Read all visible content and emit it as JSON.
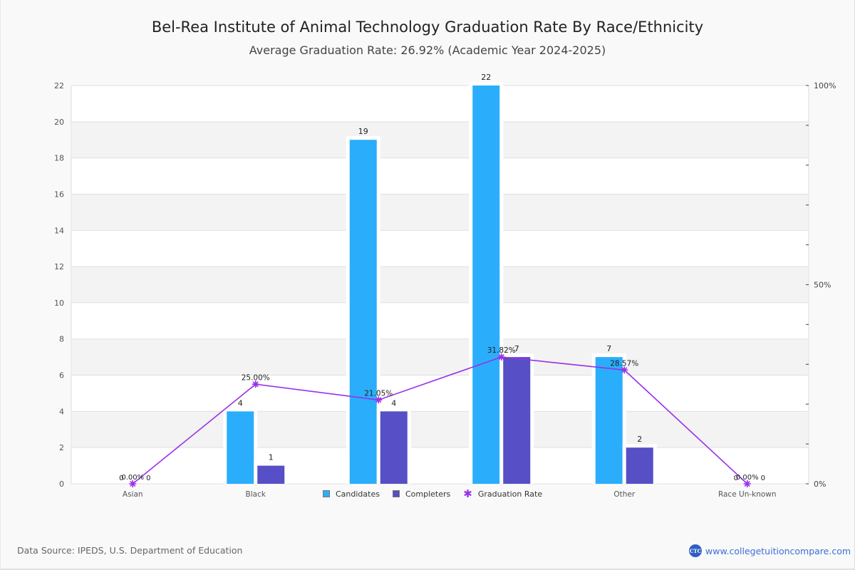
{
  "header": {
    "title": "Bel-Rea Institute of Animal Technology Graduation Rate By Race/Ethnicity",
    "subtitle": "Average Graduation Rate: 26.92% (Academic Year 2024-2025)"
  },
  "footer": {
    "source": "Data Source: IPEDS, U.S. Department of Education",
    "brand_logo_text": "CTC",
    "brand_url": "www.collegetuitioncompare.com"
  },
  "colors": {
    "candidates": "#2aaefc",
    "completers": "#564fc5",
    "graduation_rate": "#9b30e8"
  },
  "legend": {
    "items": [
      {
        "label": "Candidates",
        "icon": "square-swatch"
      },
      {
        "label": "Completers",
        "icon": "square-swatch"
      },
      {
        "label": "Graduation Rate",
        "icon": "star-marker-icon"
      }
    ]
  },
  "chart_data": {
    "type": "bar",
    "title": "Bel-Rea Institute of Animal Technology Graduation Rate By Race/Ethnicity",
    "subtitle": "Average Graduation Rate: 26.92% (Academic Year 2024-2025)",
    "categories": [
      "Asian",
      "Black",
      "",
      "",
      "Other",
      "Race Un-known"
    ],
    "series": [
      {
        "name": "Candidates",
        "type": "bar",
        "axis": "left",
        "values": [
          0,
          4,
          19,
          22,
          7,
          0
        ],
        "labels": [
          "0",
          "4",
          "19",
          "22",
          "7",
          "0"
        ]
      },
      {
        "name": "Completers",
        "type": "bar",
        "axis": "left",
        "values": [
          0,
          1,
          4,
          7,
          2,
          0
        ],
        "labels": [
          "0",
          "1",
          "4",
          "7",
          "2",
          "0"
        ]
      },
      {
        "name": "Graduation Rate",
        "type": "line",
        "axis": "right",
        "values": [
          0,
          25.0,
          21.05,
          31.82,
          28.57,
          0
        ],
        "labels": [
          "0.00%",
          "25.00%",
          "21.05%",
          "31.82%",
          "28.57%",
          "0.00%"
        ]
      }
    ],
    "left_axis": {
      "min": 0,
      "max": 22,
      "ticks": [
        "0",
        "2",
        "4",
        "6",
        "8",
        "10",
        "12",
        "14",
        "16",
        "18",
        "20",
        "22"
      ]
    },
    "right_axis": {
      "min": 0,
      "max": 100,
      "ticks": [
        "0%",
        "50%",
        "100%"
      ],
      "minor_tick_count": 10
    },
    "xlabel": "",
    "ylabel": "",
    "ylim": [
      0,
      22
    ],
    "grid": true,
    "legend_position": "bottom-center"
  }
}
